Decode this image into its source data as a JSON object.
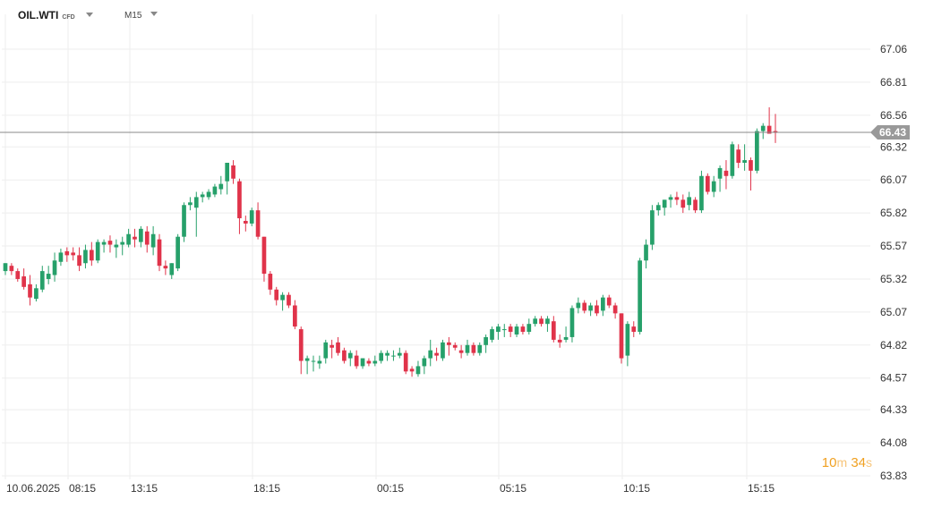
{
  "header": {
    "symbol": "OIL.WTI",
    "badge": "CFD",
    "timeframe": "M15"
  },
  "timer": {
    "minutes": "10",
    "min_unit": "m",
    "seconds": "34",
    "sec_unit": "s"
  },
  "colors": {
    "up": "#26a06a",
    "down": "#e0334a",
    "grid": "#eeeeee",
    "price_line": "#888888",
    "price_tag": "#999999",
    "timer": "#f0a020"
  },
  "chart_data": {
    "type": "candlestick",
    "y_axis": {
      "ticks": [
        "67.06",
        "66.81",
        "66.56",
        "66.32",
        "66.07",
        "65.82",
        "65.57",
        "65.32",
        "65.07",
        "64.82",
        "64.57",
        "64.33",
        "64.08",
        "63.83"
      ],
      "range": [
        63.8,
        67.15
      ]
    },
    "x_axis": {
      "labels": [
        "10.06.2025",
        "08:15",
        "13:15",
        "18:15",
        "00:15",
        "05:15",
        "10:15",
        "15:15"
      ]
    },
    "current_price": "66.43",
    "candles": [
      [
        65.38,
        65.44,
        65.35,
        65.44
      ],
      [
        65.42,
        65.44,
        65.35,
        65.38
      ],
      [
        65.38,
        65.4,
        65.3,
        65.32
      ],
      [
        65.34,
        65.4,
        65.24,
        65.26
      ],
      [
        65.28,
        65.35,
        65.12,
        65.18
      ],
      [
        65.17,
        65.28,
        65.15,
        65.25
      ],
      [
        65.24,
        65.42,
        65.22,
        65.38
      ],
      [
        65.32,
        65.42,
        65.28,
        65.36
      ],
      [
        65.35,
        65.52,
        65.3,
        65.46
      ],
      [
        65.45,
        65.55,
        65.42,
        65.52
      ],
      [
        65.53,
        65.56,
        65.45,
        65.5
      ],
      [
        65.52,
        65.56,
        65.46,
        65.5
      ],
      [
        65.5,
        65.56,
        65.38,
        65.42
      ],
      [
        65.44,
        65.58,
        65.4,
        65.54
      ],
      [
        65.54,
        65.6,
        65.42,
        65.46
      ],
      [
        65.46,
        65.62,
        65.44,
        65.6
      ],
      [
        65.58,
        65.62,
        65.52,
        65.6
      ],
      [
        65.61,
        65.65,
        65.52,
        65.58
      ],
      [
        65.56,
        65.62,
        65.48,
        65.58
      ],
      [
        65.58,
        65.64,
        65.5,
        65.6
      ],
      [
        65.58,
        65.7,
        65.56,
        65.66
      ],
      [
        65.64,
        65.7,
        65.56,
        65.62
      ],
      [
        65.6,
        65.72,
        65.56,
        65.7
      ],
      [
        65.68,
        65.72,
        65.52,
        65.58
      ],
      [
        65.56,
        65.72,
        65.5,
        65.66
      ],
      [
        65.62,
        65.66,
        65.38,
        65.42
      ],
      [
        65.42,
        65.46,
        65.35,
        65.4
      ],
      [
        65.35,
        65.44,
        65.32,
        65.44
      ],
      [
        65.4,
        65.66,
        65.38,
        65.64
      ],
      [
        65.64,
        65.9,
        65.6,
        65.88
      ],
      [
        65.88,
        65.94,
        65.84,
        65.9
      ],
      [
        65.86,
        65.98,
        65.64,
        65.94
      ],
      [
        65.94,
        65.98,
        65.9,
        65.96
      ],
      [
        65.94,
        66.0,
        65.92,
        65.98
      ],
      [
        65.96,
        66.04,
        65.94,
        66.02
      ],
      [
        66.0,
        66.1,
        65.96,
        66.04
      ],
      [
        66.06,
        66.2,
        65.96,
        66.2
      ],
      [
        66.18,
        66.22,
        66.04,
        66.08
      ],
      [
        66.06,
        66.08,
        65.66,
        65.78
      ],
      [
        65.76,
        65.8,
        65.68,
        65.74
      ],
      [
        65.74,
        65.86,
        65.72,
        65.84
      ],
      [
        65.84,
        65.9,
        65.62,
        65.64
      ],
      [
        65.64,
        65.64,
        65.3,
        65.36
      ],
      [
        65.36,
        65.38,
        65.2,
        65.24
      ],
      [
        65.24,
        65.26,
        65.12,
        65.16
      ],
      [
        65.16,
        65.22,
        65.08,
        65.2
      ],
      [
        65.2,
        65.22,
        65.1,
        65.12
      ],
      [
        65.12,
        65.16,
        64.94,
        64.96
      ],
      [
        64.94,
        64.96,
        64.6,
        64.7
      ],
      [
        64.7,
        64.74,
        64.6,
        64.72
      ],
      [
        64.7,
        64.74,
        64.62,
        64.7
      ],
      [
        64.68,
        64.74,
        64.64,
        64.7
      ],
      [
        64.72,
        64.86,
        64.68,
        64.84
      ],
      [
        64.82,
        64.86,
        64.72,
        64.8
      ],
      [
        64.84,
        64.88,
        64.74,
        64.76
      ],
      [
        64.78,
        64.8,
        64.68,
        64.7
      ],
      [
        64.72,
        64.78,
        64.66,
        64.76
      ],
      [
        64.74,
        64.78,
        64.64,
        64.66
      ],
      [
        64.66,
        64.72,
        64.64,
        64.72
      ],
      [
        64.7,
        64.72,
        64.66,
        64.68
      ],
      [
        64.68,
        64.74,
        64.66,
        64.7
      ],
      [
        64.7,
        64.78,
        64.68,
        64.76
      ],
      [
        64.74,
        64.78,
        64.7,
        64.76
      ],
      [
        64.74,
        64.78,
        64.7,
        64.74
      ],
      [
        64.74,
        64.8,
        64.72,
        64.76
      ],
      [
        64.76,
        64.78,
        64.6,
        64.62
      ],
      [
        64.64,
        64.66,
        64.58,
        64.62
      ],
      [
        64.6,
        64.7,
        64.58,
        64.66
      ],
      [
        64.66,
        64.74,
        64.6,
        64.72
      ],
      [
        64.72,
        64.86,
        64.66,
        64.78
      ],
      [
        64.76,
        64.8,
        64.7,
        64.74
      ],
      [
        64.72,
        64.86,
        64.7,
        64.84
      ],
      [
        64.84,
        64.88,
        64.74,
        64.82
      ],
      [
        64.82,
        64.84,
        64.78,
        64.8
      ],
      [
        64.78,
        64.82,
        64.72,
        64.76
      ],
      [
        64.76,
        64.86,
        64.74,
        64.82
      ],
      [
        64.82,
        64.84,
        64.74,
        64.76
      ],
      [
        64.76,
        64.84,
        64.74,
        64.82
      ],
      [
        64.82,
        64.9,
        64.76,
        64.88
      ],
      [
        64.86,
        64.96,
        64.84,
        64.94
      ],
      [
        64.92,
        64.98,
        64.86,
        64.96
      ],
      [
        64.94,
        64.98,
        64.88,
        64.94
      ],
      [
        64.96,
        64.98,
        64.88,
        64.92
      ],
      [
        64.9,
        64.98,
        64.88,
        64.96
      ],
      [
        64.96,
        64.98,
        64.9,
        64.92
      ],
      [
        64.92,
        65.02,
        64.9,
        64.98
      ],
      [
        64.98,
        65.04,
        64.96,
        65.02
      ],
      [
        65.02,
        65.04,
        64.96,
        64.98
      ],
      [
        64.98,
        65.04,
        64.92,
        65.02
      ],
      [
        65.0,
        65.04,
        64.84,
        64.86
      ],
      [
        64.86,
        64.9,
        64.8,
        64.84
      ],
      [
        64.86,
        64.96,
        64.84,
        64.88
      ],
      [
        64.88,
        65.12,
        64.84,
        65.1
      ],
      [
        65.1,
        65.18,
        65.06,
        65.14
      ],
      [
        65.14,
        65.16,
        65.06,
        65.08
      ],
      [
        65.08,
        65.14,
        65.04,
        65.12
      ],
      [
        65.12,
        65.16,
        65.04,
        65.06
      ],
      [
        65.08,
        65.2,
        65.04,
        65.18
      ],
      [
        65.18,
        65.2,
        65.1,
        65.12
      ],
      [
        65.12,
        65.14,
        65.02,
        65.06
      ],
      [
        65.06,
        65.06,
        64.68,
        64.72
      ],
      [
        64.74,
        65.0,
        64.66,
        64.98
      ],
      [
        64.96,
        65.0,
        64.88,
        64.92
      ],
      [
        64.92,
        65.48,
        64.9,
        65.46
      ],
      [
        65.46,
        65.62,
        65.4,
        65.58
      ],
      [
        65.58,
        65.88,
        65.54,
        65.84
      ],
      [
        65.84,
        65.9,
        65.8,
        65.88
      ],
      [
        65.86,
        65.92,
        65.8,
        65.92
      ],
      [
        65.92,
        65.96,
        65.86,
        65.94
      ],
      [
        65.94,
        65.98,
        65.88,
        65.92
      ],
      [
        65.92,
        65.96,
        65.82,
        65.86
      ],
      [
        65.88,
        65.98,
        65.84,
        65.94
      ],
      [
        65.92,
        65.94,
        65.82,
        65.84
      ],
      [
        65.84,
        66.14,
        65.82,
        66.1
      ],
      [
        66.1,
        66.12,
        65.96,
        65.98
      ],
      [
        65.98,
        66.1,
        65.94,
        66.06
      ],
      [
        66.08,
        66.18,
        65.98,
        66.16
      ],
      [
        66.14,
        66.22,
        66.0,
        66.1
      ],
      [
        66.1,
        66.36,
        66.08,
        66.34
      ],
      [
        66.3,
        66.34,
        66.16,
        66.2
      ],
      [
        66.2,
        66.34,
        66.14,
        66.22
      ],
      [
        66.22,
        66.24,
        65.99,
        66.14
      ],
      [
        66.14,
        66.46,
        66.12,
        66.44
      ],
      [
        66.44,
        66.5,
        66.38,
        66.48
      ],
      [
        66.48,
        66.62,
        66.42,
        66.42
      ],
      [
        66.44,
        66.57,
        66.35,
        66.43
      ]
    ]
  }
}
